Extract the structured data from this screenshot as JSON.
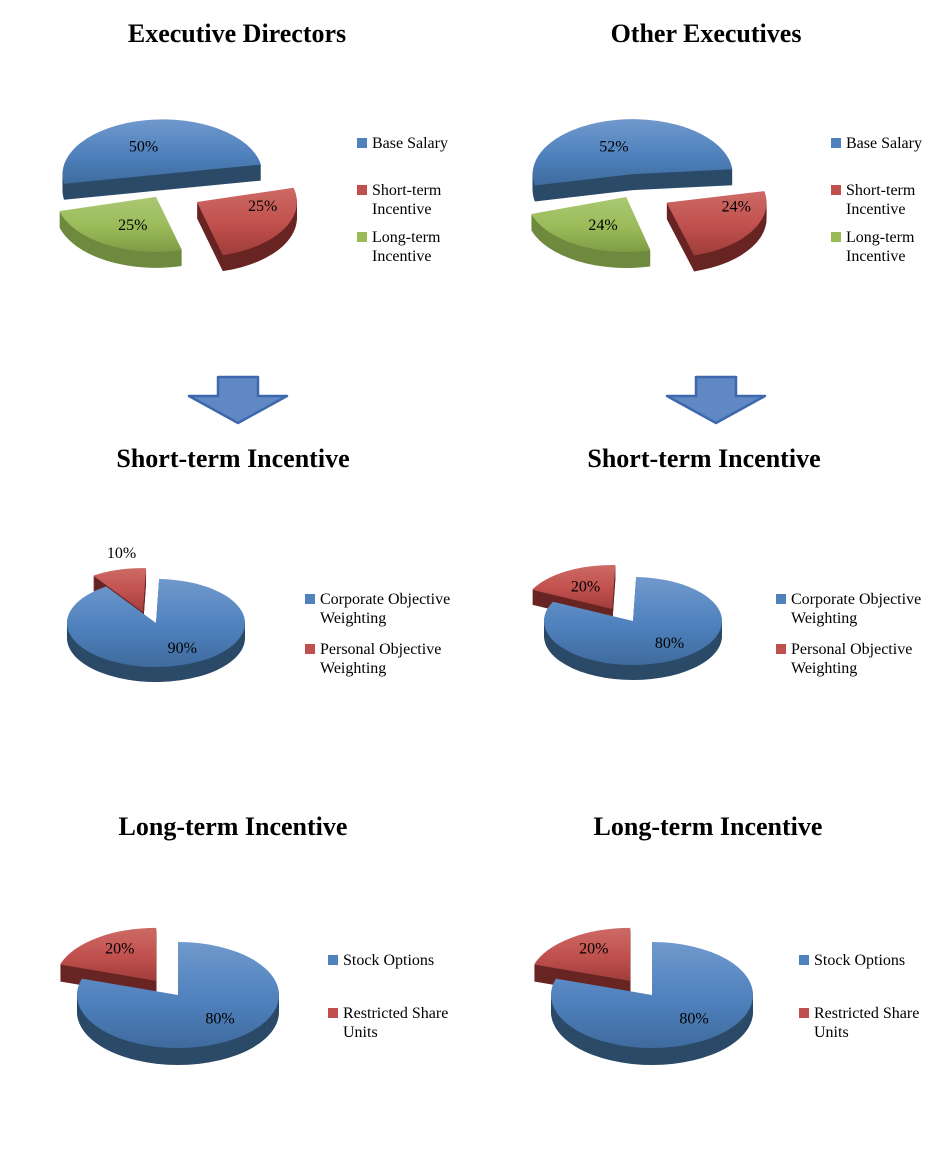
{
  "page": {
    "background": "#ffffff"
  },
  "palette": {
    "series": {
      "blue": {
        "top": "#4f81bd",
        "light": "#7099cd",
        "dark": "#3f6b9e",
        "side": "#2b4a68"
      },
      "red": {
        "top": "#c0504d",
        "light": "#cd6a65",
        "dark": "#9f3d3b",
        "side": "#682523"
      },
      "green": {
        "top": "#9bbb59",
        "light": "#aac873",
        "dark": "#7f9c45",
        "side": "#6f8a3e"
      }
    },
    "arrow": {
      "fill": "#6089c4",
      "stroke": "#3e68ad"
    },
    "text": "#000000"
  },
  "arrows": [
    {
      "position": "left",
      "direction": "down"
    },
    {
      "position": "right",
      "direction": "down"
    }
  ],
  "chart_data": [
    {
      "type": "pie",
      "title": "Executive Directors",
      "labels": [
        "Base Salary",
        "Short-term Incentive",
        "Long-term Incentive"
      ],
      "values": [
        50,
        25,
        25
      ],
      "value_labels": [
        "50%",
        "25%",
        "25%"
      ],
      "colors": [
        "blue",
        "red",
        "green"
      ],
      "legend_position": "right",
      "effect": "3d-exploded"
    },
    {
      "type": "pie",
      "title": "Other Executives",
      "labels": [
        "Base Salary",
        "Short-term Incentive",
        "Long-term Incentive"
      ],
      "values": [
        52,
        24,
        24
      ],
      "value_labels": [
        "52%",
        "24%",
        "24%"
      ],
      "colors": [
        "blue",
        "red",
        "green"
      ],
      "legend_position": "right",
      "effect": "3d-exploded"
    },
    {
      "type": "pie",
      "title": "Short-term Incentive",
      "labels": [
        "Corporate Objective Weighting",
        "Personal Objective Weighting"
      ],
      "values": [
        90,
        10
      ],
      "value_labels": [
        "90%",
        "10%"
      ],
      "colors": [
        "blue",
        "red"
      ],
      "legend_position": "right",
      "effect": "3d-exploded"
    },
    {
      "type": "pie",
      "title": "Short-term Incentive",
      "labels": [
        "Corporate Objective Weighting",
        "Personal Objective Weighting"
      ],
      "values": [
        80,
        20
      ],
      "value_labels": [
        "80%",
        "20%"
      ],
      "colors": [
        "blue",
        "red"
      ],
      "legend_position": "right",
      "effect": "3d-exploded"
    },
    {
      "type": "pie",
      "title": "Long-term Incentive",
      "labels": [
        "Stock Options",
        "Restricted Share Units"
      ],
      "values": [
        80,
        20
      ],
      "value_labels": [
        "80%",
        "20%"
      ],
      "colors": [
        "blue",
        "red"
      ],
      "legend_position": "right",
      "effect": "3d-exploded"
    },
    {
      "type": "pie",
      "title": "Long-term Incentive",
      "labels": [
        "Stock Options",
        "Restricted Share Units"
      ],
      "values": [
        80,
        20
      ],
      "value_labels": [
        "80%",
        "20%"
      ],
      "colors": [
        "blue",
        "red"
      ],
      "legend_position": "right",
      "effect": "3d-exploded"
    }
  ]
}
